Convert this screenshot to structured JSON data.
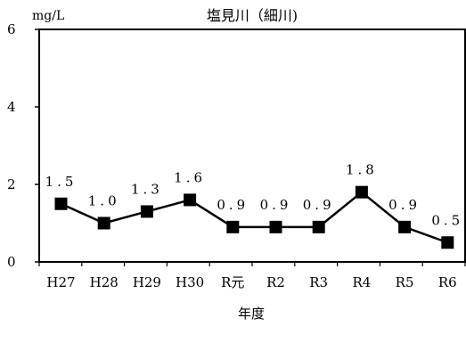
{
  "chart_data": {
    "type": "line",
    "title": "塩見川（細川)",
    "unit_label": "mg/L",
    "xlabel": "年度",
    "ylabel": "",
    "ylim": [
      0,
      6
    ],
    "yticks": [
      "0",
      "2",
      "4",
      "6"
    ],
    "grid": false,
    "categories": [
      "H27",
      "H28",
      "H29",
      "H30",
      "R元",
      "R2",
      "R3",
      "R4",
      "R5",
      "R6"
    ],
    "series": [
      {
        "values": [
          1.5,
          1.0,
          1.3,
          1.6,
          0.9,
          0.9,
          0.9,
          1.8,
          0.9,
          0.5
        ],
        "data_labels": [
          "1.5",
          "1.0",
          "1.3",
          "1.6",
          "0.9",
          "0.9",
          "0.9",
          "1.8",
          "0.9",
          "0.5"
        ],
        "color": "#000000",
        "marker": "square"
      }
    ]
  }
}
